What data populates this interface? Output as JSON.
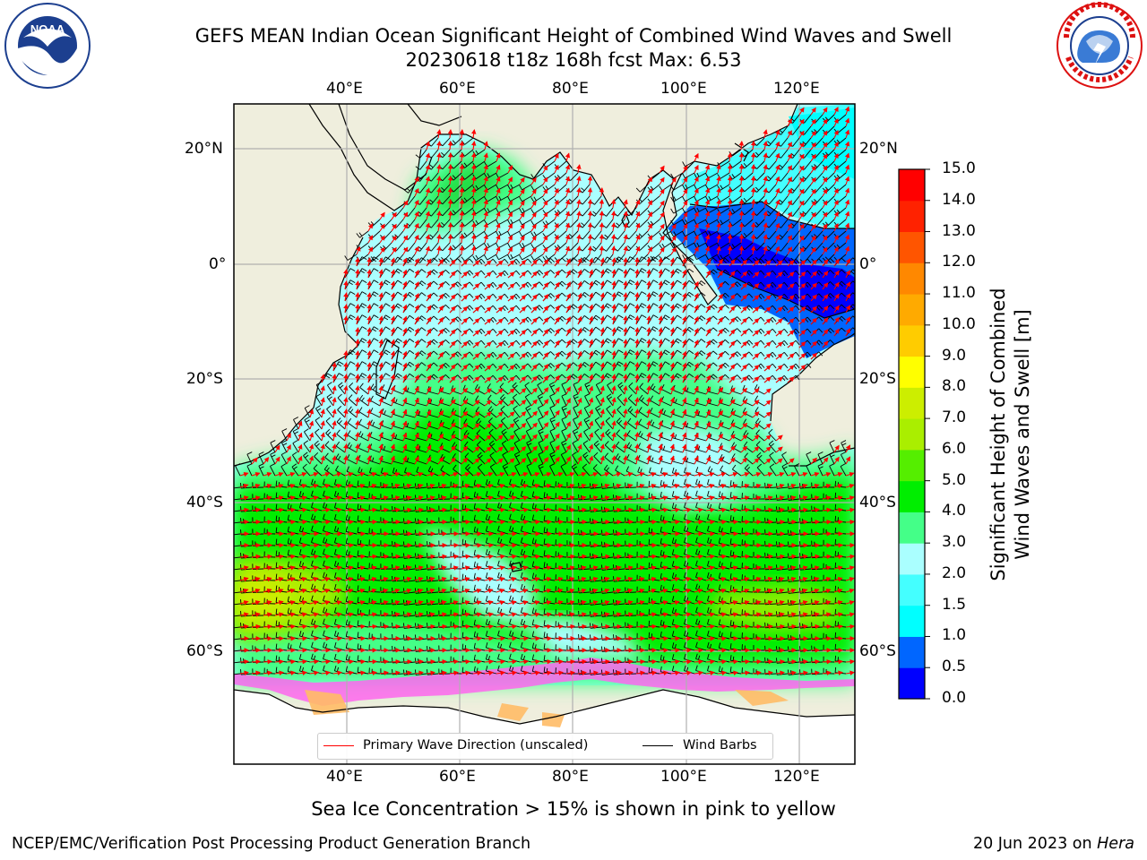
{
  "title": {
    "line1": "GEFS MEAN Indian Ocean Significant Height of Combined Wind Waves and Swell",
    "line2": "20230618 t18z 168h fcst   Max: 6.53"
  },
  "logos": {
    "left": {
      "name": "noaa-logo",
      "text": "NOAA",
      "ring_text": "NATIONAL OCEANIC AND ATMOSPHERIC ADMINISTRATION · U.S. DEPARTMENT OF COMMERCE"
    },
    "right": {
      "name": "nws-logo",
      "ring_text": "NATIONAL WEATHER SERVICE"
    }
  },
  "map": {
    "lon_ticks": [
      "40°E",
      "60°E",
      "80°E",
      "100°E",
      "120°E"
    ],
    "lat_ticks_left": [
      "20°N",
      "0°",
      "20°S",
      "40°S",
      "60°S"
    ],
    "lat_ticks_right": [
      "20°N",
      "0°",
      "20°S",
      "40°S",
      "60°S"
    ],
    "land_color": "#efeedd",
    "grid_color": "#b0b0b0"
  },
  "legend": {
    "wave_label": "Primary Wave Direction (unscaled)",
    "wave_color": "#ff0000",
    "barb_label": "Wind Barbs",
    "barb_color": "#000000"
  },
  "colorbar": {
    "ticks": [
      "0.0",
      "0.5",
      "1.0",
      "1.5",
      "2.0",
      "3.0",
      "4.0",
      "5.0",
      "6.0",
      "7.0",
      "8.0",
      "9.0",
      "10.0",
      "11.0",
      "12.0",
      "13.0",
      "14.0",
      "15.0"
    ],
    "colors": [
      "#0000ff",
      "#0066ff",
      "#00ffff",
      "#44ffff",
      "#aaffff",
      "#44ff88",
      "#00ee00",
      "#55ee00",
      "#aaee00",
      "#ccee00",
      "#ffff00",
      "#ffcc00",
      "#ffaa00",
      "#ff8800",
      "#ff5500",
      "#ff2200",
      "#ff0000"
    ],
    "label_line1": "Significant Height of Combined",
    "label_line2": "Wind Waves and Swell [m]"
  },
  "sea_ice_note": "Sea Ice Concentration > 15% is shown in pink to yellow",
  "footer": {
    "left": "NCEP/EMC/Verification Post Processing Product Generation Branch",
    "right_prefix": "20 Jun 2023 on ",
    "right_machine": "Hera"
  }
}
